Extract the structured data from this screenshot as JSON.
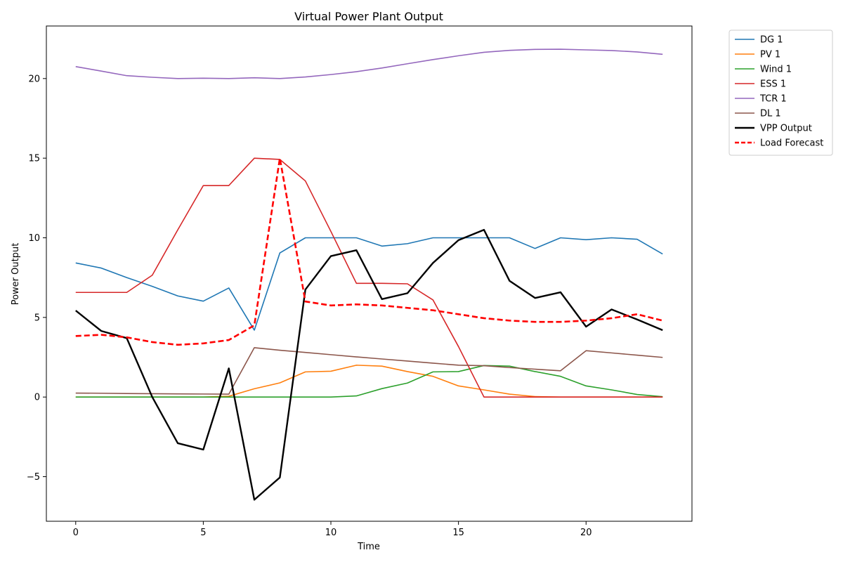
{
  "chart_data": {
    "type": "line",
    "title": "Virtual Power Plant Output",
    "xlabel": "Time",
    "ylabel": "Power Output",
    "xlim": [
      -1.15,
      24.15
    ],
    "ylim": [
      -7.8,
      23.3
    ],
    "xticks": [
      0,
      5,
      10,
      15,
      20
    ],
    "yticks": [
      -5,
      0,
      5,
      10,
      15,
      20
    ],
    "ytick_labels": [
      "−5",
      "0",
      "5",
      "10",
      "15",
      "20"
    ],
    "grid": false,
    "legend_position": "outside-top-right",
    "x": [
      0,
      1,
      2,
      3,
      4,
      5,
      6,
      7,
      8,
      9,
      10,
      11,
      12,
      13,
      14,
      15,
      16,
      17,
      18,
      19,
      20,
      21,
      22,
      23
    ],
    "series": [
      {
        "name": "DG 1",
        "color": "#1f77b4",
        "dash": "solid",
        "width": 1.6,
        "values": [
          8.42,
          8.1,
          7.5,
          6.95,
          6.35,
          6.02,
          6.85,
          4.2,
          9.05,
          10.0,
          10.0,
          10.0,
          9.48,
          9.63,
          10.0,
          10.0,
          10.0,
          10.0,
          9.33,
          10.0,
          9.88,
          10.0,
          9.91,
          8.98
        ]
      },
      {
        "name": "PV 1",
        "color": "#ff7f0e",
        "dash": "solid",
        "width": 1.6,
        "values": [
          0,
          0,
          0,
          0,
          0,
          0,
          0.05,
          0.52,
          0.89,
          1.58,
          1.62,
          2.0,
          1.94,
          1.6,
          1.3,
          0.7,
          0.45,
          0.18,
          0.03,
          0,
          0,
          0,
          0,
          0
        ]
      },
      {
        "name": "Wind 1",
        "color": "#2ca02c",
        "dash": "solid",
        "width": 1.6,
        "values": [
          0,
          0,
          0,
          0,
          0,
          0,
          0,
          0,
          0,
          0,
          0,
          0.07,
          0.53,
          0.88,
          1.58,
          1.6,
          1.98,
          1.94,
          1.6,
          1.3,
          0.7,
          0.45,
          0.16,
          0.02
        ]
      },
      {
        "name": "ESS 1",
        "color": "#d62728",
        "dash": "solid",
        "width": 1.6,
        "values": [
          6.57,
          6.57,
          6.57,
          7.65,
          10.5,
          13.28,
          13.28,
          15.0,
          14.92,
          13.57,
          10.4,
          7.14,
          7.14,
          7.11,
          6.1,
          3.17,
          0,
          0,
          0,
          0,
          0,
          0,
          0,
          0
        ]
      },
      {
        "name": "TCR 1",
        "color": "#9467bd",
        "dash": "solid",
        "width": 1.6,
        "values": [
          20.75,
          20.47,
          20.18,
          20.08,
          20.0,
          20.02,
          20.0,
          20.05,
          20.0,
          20.1,
          20.25,
          20.43,
          20.66,
          20.93,
          21.19,
          21.43,
          21.65,
          21.77,
          21.83,
          21.84,
          21.8,
          21.76,
          21.67,
          21.52
        ]
      },
      {
        "name": "DL 1",
        "color": "#8c564b",
        "dash": "solid",
        "width": 1.6,
        "values": [
          0.25,
          0.24,
          0.22,
          0.21,
          0.2,
          0.19,
          0.18,
          3.1,
          2.94,
          2.8,
          2.66,
          2.52,
          2.39,
          2.26,
          2.13,
          2.0,
          1.97,
          1.85,
          1.75,
          1.65,
          2.91,
          2.77,
          2.63,
          2.49
        ]
      },
      {
        "name": "VPP Output",
        "color": "#000000",
        "dash": "solid",
        "width": 2.4,
        "values": [
          5.43,
          4.15,
          3.7,
          0.0,
          -2.9,
          -3.3,
          1.8,
          -6.45,
          -5.05,
          6.75,
          8.85,
          9.22,
          6.15,
          6.52,
          8.42,
          9.85,
          10.5,
          7.3,
          6.22,
          6.58,
          4.42,
          5.5,
          4.87,
          4.2
        ]
      },
      {
        "name": "Load Forecast",
        "color": "#ff0000",
        "dash": "8,4",
        "width": 2.6,
        "values": [
          3.83,
          3.91,
          3.75,
          3.45,
          3.28,
          3.37,
          3.58,
          4.5,
          15.0,
          6.0,
          5.75,
          5.82,
          5.75,
          5.6,
          5.45,
          5.2,
          4.95,
          4.8,
          4.72,
          4.72,
          4.8,
          4.95,
          5.2,
          4.8
        ]
      }
    ]
  }
}
